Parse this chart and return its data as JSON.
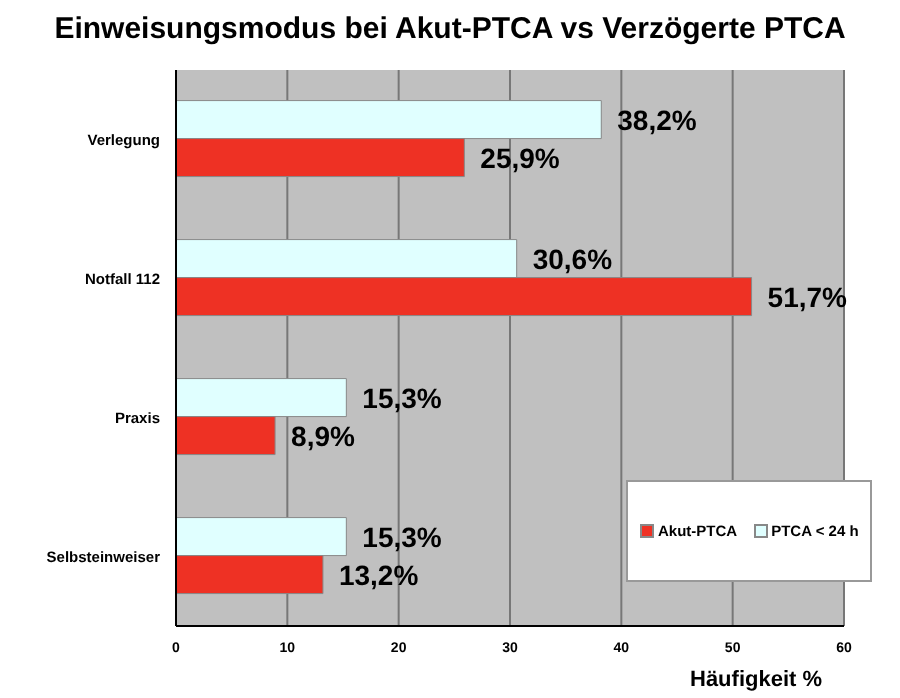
{
  "chart_data": {
    "type": "bar",
    "orientation": "horizontal",
    "title": "Einweisungsmodus bei Akut-PTCA vs Verzögerte PTCA",
    "xlabel": "Häufigkeit %",
    "categories": [
      "Verlegung",
      "Notfall 112",
      "Praxis",
      "Selbsteinweiser"
    ],
    "series": [
      {
        "name": "Akut-PTCA",
        "color": "#ee3124",
        "values": [
          25.9,
          51.7,
          8.9,
          13.2
        ],
        "value_labels": [
          "25,9%",
          "51,7%",
          "8,9%",
          "13,2%"
        ]
      },
      {
        "name": "PTCA < 24 h",
        "color": "#e0ffff",
        "values": [
          38.2,
          30.6,
          15.3,
          15.3
        ],
        "value_labels": [
          "38,2%",
          "30,6%",
          "15,3%",
          "15,3%"
        ]
      }
    ],
    "xlim": [
      0,
      60
    ],
    "xticks": [
      0,
      10,
      20,
      30,
      40,
      50,
      60
    ],
    "grid": "x",
    "legend": "bottom right"
  }
}
